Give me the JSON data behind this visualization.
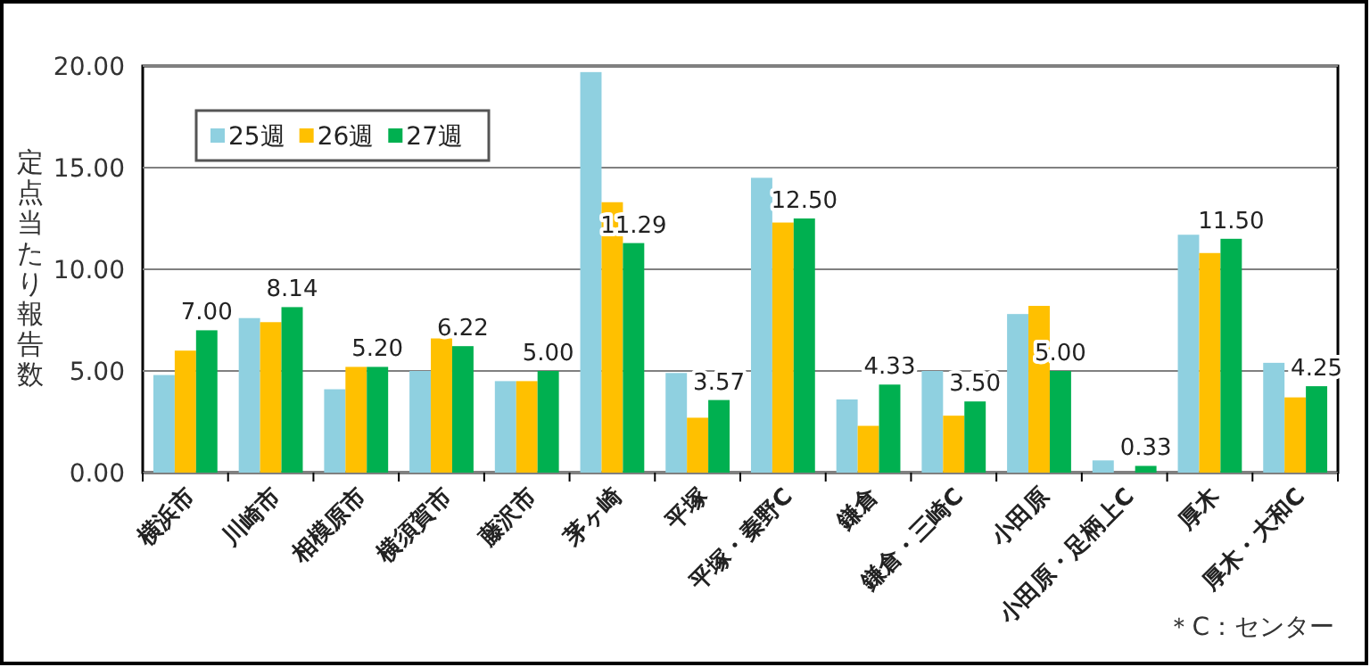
{
  "chart_data": {
    "type": "bar",
    "ylabel": "定点当たり報告数",
    "categories": [
      "横浜市",
      "川崎市",
      "相模原市",
      "横須賀市",
      "藤沢市",
      "茅ヶ崎",
      "平塚",
      "平塚・秦野C",
      "鎌倉",
      "鎌倉・三崎C",
      "小田原",
      "小田原・足柄上C",
      "厚木",
      "厚木・大和C"
    ],
    "series": [
      {
        "name": "25週",
        "color": "#8fd0e0",
        "values": [
          4.8,
          7.6,
          4.1,
          5.0,
          4.5,
          19.7,
          4.9,
          14.5,
          3.6,
          5.0,
          7.8,
          0.6,
          11.7,
          5.4
        ]
      },
      {
        "name": "26週",
        "color": "#ffc000",
        "values": [
          6.0,
          7.4,
          5.2,
          6.6,
          4.5,
          13.3,
          2.7,
          12.3,
          2.3,
          2.8,
          8.2,
          0,
          10.8,
          3.7
        ]
      },
      {
        "name": "27週",
        "color": "#00b050",
        "values": [
          7.0,
          8.14,
          5.2,
          6.22,
          5.0,
          11.29,
          3.57,
          12.5,
          4.33,
          3.5,
          5.0,
          0.33,
          11.5,
          4.25
        ],
        "value_labels": [
          "7.00",
          "8.14",
          "5.20",
          "6.22",
          "5.00",
          "11.29",
          "3.57",
          "12.50",
          "4.33",
          "3.50",
          "5.00",
          "0.33",
          "11.50",
          "4.25"
        ]
      }
    ],
    "ylim": [
      0,
      20
    ],
    "yticks": [
      {
        "value": 0,
        "label": "0.00"
      },
      {
        "value": 5,
        "label": "5.00"
      },
      {
        "value": 10,
        "label": "10.00"
      },
      {
        "value": 15,
        "label": "15.00"
      },
      {
        "value": 20,
        "label": "20.00"
      }
    ],
    "grid": "y",
    "legend": "top left",
    "annotations": [
      "＊C：センター"
    ]
  }
}
